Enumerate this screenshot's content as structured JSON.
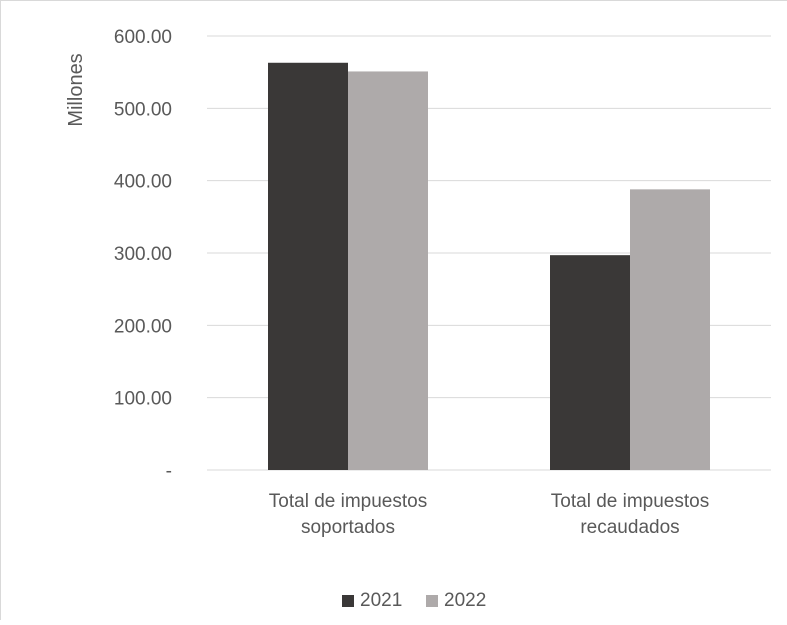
{
  "chart_data": {
    "type": "bar",
    "categories": [
      [
        "Total de impuestos",
        "soportados"
      ],
      [
        "Total de impuestos",
        "recaudados"
      ]
    ],
    "series": [
      {
        "name": "2021",
        "color": "#3a3837",
        "values": [
          563,
          297
        ]
      },
      {
        "name": "2022",
        "color": "#aeaaaa",
        "values": [
          551,
          388
        ]
      }
    ],
    "ylabel": "Millones",
    "ylim": [
      0,
      600
    ],
    "yticks": [
      0,
      100,
      200,
      300,
      400,
      500,
      600
    ],
    "ytick_labels": [
      "-",
      "100.00",
      "200.00",
      "300.00",
      "400.00",
      "500.00",
      "600.00"
    ],
    "grid": true,
    "legend_position": "bottom"
  }
}
